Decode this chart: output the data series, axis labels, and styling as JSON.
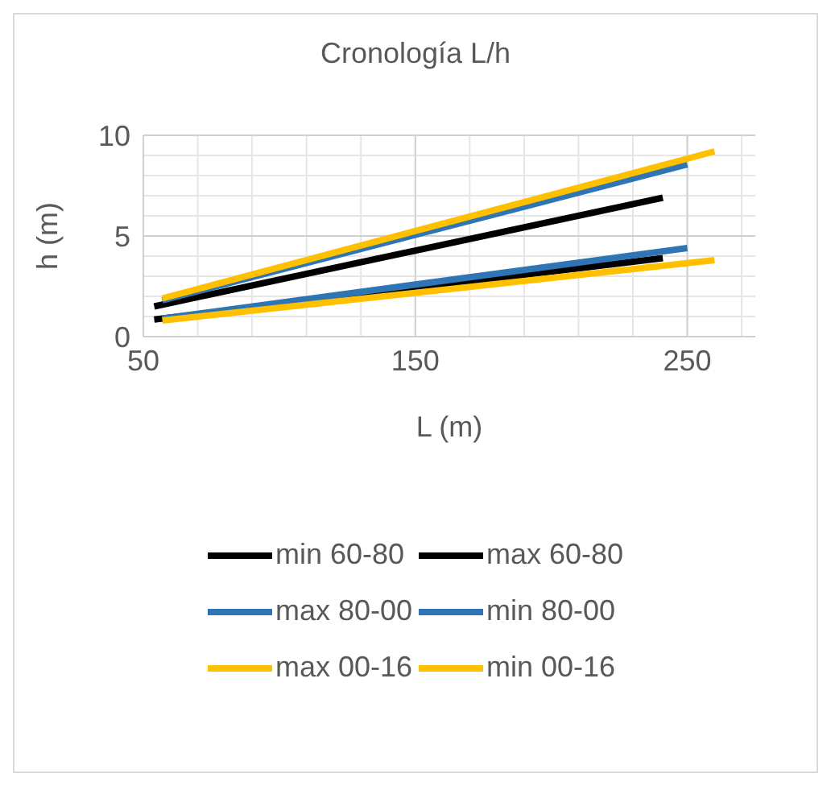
{
  "chart_data": {
    "type": "line",
    "title": "Cronología L/h",
    "xlabel": "L (m)",
    "ylabel": "h (m)",
    "xlim": [
      50,
      275
    ],
    "xticks": [
      50,
      150,
      250
    ],
    "ylim": [
      0,
      10
    ],
    "yticks": [
      0,
      5,
      10
    ],
    "grid": true,
    "legend": "bottom",
    "marker": "none",
    "line_style": "solid",
    "series": [
      {
        "name": "min 60-80",
        "color": "#000000",
        "x": [
          54,
          241
        ],
        "values": [
          0.85,
          3.9
        ]
      },
      {
        "name": "max 60-80",
        "color": "#000000",
        "x": [
          54,
          241
        ],
        "values": [
          1.5,
          6.9
        ]
      },
      {
        "name": "max 80-00",
        "color": "#2e75b6",
        "x": [
          57,
          250
        ],
        "values": [
          1.8,
          8.55
        ]
      },
      {
        "name": "min 80-00",
        "color": "#2e75b6",
        "x": [
          57,
          250
        ],
        "values": [
          0.9,
          4.4
        ]
      },
      {
        "name": "max 00-16",
        "color": "#ffc000",
        "x": [
          57,
          260
        ],
        "values": [
          1.9,
          9.2
        ]
      },
      {
        "name": "min 00-16",
        "color": "#ffc000",
        "x": [
          57,
          260
        ],
        "values": [
          0.8,
          3.8
        ]
      }
    ]
  }
}
